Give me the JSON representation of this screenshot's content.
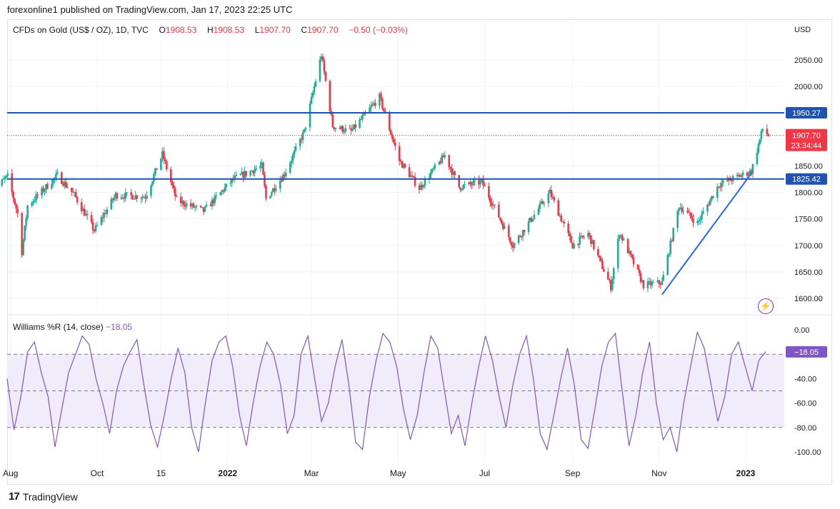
{
  "header": {
    "publisher_line": "forexonline1 published on TradingView.com, Jan 17, 2023 22:25 UTC"
  },
  "legend": {
    "symbol": "CFDs on Gold (US$ / OZ), 1D, TVC",
    "o_label": "O",
    "o_value": "1908.53",
    "h_label": "H",
    "h_value": "1908.53",
    "l_label": "L",
    "l_value": "1907.70",
    "c_label": "C",
    "c_value": "1907.70",
    "change": "−0.50 (−0.03%)"
  },
  "indicator_legend": {
    "name": "Williams %R (14, close)",
    "value": "−18.05"
  },
  "footer": {
    "brand": "TradingView",
    "logo_text": "17"
  },
  "icons": {
    "logo": "tradingview-logo-icon",
    "bolt": "lightning-icon"
  },
  "colors": {
    "up": "#22ab94",
    "down": "#f23645",
    "level_line": "#1e53b0",
    "trend_line": "#2962ff",
    "williams": "#7e57c2",
    "williams_band": "#f0ecfa"
  },
  "chart_data": [
    {
      "type": "candlestick",
      "currency": "USD",
      "y_ticks": [
        "1600.00",
        "1650.00",
        "1700.00",
        "1750.00",
        "1800.00",
        "1850.00",
        "1900.00",
        "1950.00",
        "2000.00",
        "2050.00"
      ],
      "ylim": [
        1580,
        2080
      ],
      "x_ticks": [
        "Aug",
        "Oct",
        "15",
        "2022",
        "Mar",
        "May",
        "Jul",
        "Sep",
        "Nov",
        "2023"
      ],
      "horizontal_levels": [
        {
          "value": 1950.27,
          "label": "1950.27"
        },
        {
          "value": 1825.42,
          "label": "1825.42"
        }
      ],
      "last_price": {
        "value": 1907.7,
        "label": "1907.70",
        "countdown": "23:34:44"
      },
      "trendline": {
        "from": {
          "date": "2022-11-03",
          "price": 1607
        },
        "to": {
          "date": "2023-01-05",
          "price": 1836
        }
      },
      "price_path": [
        [
          "2021-07-20",
          1805
        ],
        [
          "2021-07-30",
          1830
        ],
        [
          "2021-08-06",
          1760
        ],
        [
          "2021-08-09",
          1688
        ],
        [
          "2021-08-13",
          1775
        ],
        [
          "2021-09-03",
          1832
        ],
        [
          "2021-09-15",
          1795
        ],
        [
          "2021-09-29",
          1728
        ],
        [
          "2021-10-14",
          1795
        ],
        [
          "2021-11-04",
          1792
        ],
        [
          "2021-11-16",
          1872
        ],
        [
          "2021-11-26",
          1785
        ],
        [
          "2021-12-15",
          1765
        ],
        [
          "2022-01-05",
          1825
        ],
        [
          "2022-01-25",
          1850
        ],
        [
          "2022-01-28",
          1788
        ],
        [
          "2022-02-10",
          1835
        ],
        [
          "2022-02-24",
          1915
        ],
        [
          "2022-03-08",
          2060
        ],
        [
          "2022-03-16",
          1925
        ],
        [
          "2022-03-29",
          1915
        ],
        [
          "2022-04-18",
          1980
        ],
        [
          "2022-05-02",
          1860
        ],
        [
          "2022-05-16",
          1808
        ],
        [
          "2022-06-03",
          1870
        ],
        [
          "2022-06-13",
          1810
        ],
        [
          "2022-06-29",
          1820
        ],
        [
          "2022-07-21",
          1700
        ],
        [
          "2022-08-16",
          1800
        ],
        [
          "2022-09-01",
          1700
        ],
        [
          "2022-09-12",
          1722
        ],
        [
          "2022-09-28",
          1622
        ],
        [
          "2022-10-04",
          1725
        ],
        [
          "2022-10-21",
          1625
        ],
        [
          "2022-11-03",
          1630
        ],
        [
          "2022-11-15",
          1775
        ],
        [
          "2022-11-28",
          1742
        ],
        [
          "2022-12-13",
          1815
        ],
        [
          "2023-01-05",
          1840
        ],
        [
          "2023-01-13",
          1920
        ],
        [
          "2023-01-17",
          1907.7
        ]
      ]
    },
    {
      "type": "line",
      "name": "Williams %R (14, close)",
      "y_ticks": [
        "0.00",
        "-40.00",
        "-60.00",
        "-80.00",
        "-100.00"
      ],
      "ylim": [
        -105,
        3
      ],
      "band": [
        -80,
        -20
      ],
      "current": {
        "value": -18.05,
        "label": "−18.05"
      },
      "values": [
        -40,
        -82,
        -55,
        -18,
        -10,
        -35,
        -55,
        -96,
        -65,
        -35,
        -20,
        -5,
        -12,
        -40,
        -60,
        -85,
        -50,
        -30,
        -18,
        -8,
        -45,
        -78,
        -96,
        -70,
        -40,
        -15,
        -35,
        -80,
        -100,
        -60,
        -25,
        -10,
        -5,
        -30,
        -70,
        -95,
        -60,
        -30,
        -10,
        -20,
        -45,
        -85,
        -70,
        -20,
        -5,
        -40,
        -75,
        -60,
        -30,
        -8,
        -45,
        -92,
        -98,
        -55,
        -25,
        -3,
        -10,
        -30,
        -65,
        -90,
        -70,
        -35,
        -5,
        -15,
        -50,
        -85,
        -70,
        -95,
        -60,
        -30,
        -5,
        -25,
        -55,
        -80,
        -45,
        -20,
        -5,
        -40,
        -85,
        -98,
        -70,
        -40,
        -15,
        -45,
        -90,
        -97,
        -65,
        -30,
        -10,
        -3,
        -50,
        -95,
        -70,
        -35,
        -10,
        -60,
        -90,
        -80,
        -100,
        -60,
        -30,
        -2,
        -15,
        -45,
        -75,
        -55,
        -20,
        -10,
        -30,
        -50,
        -25,
        -18
      ]
    }
  ]
}
